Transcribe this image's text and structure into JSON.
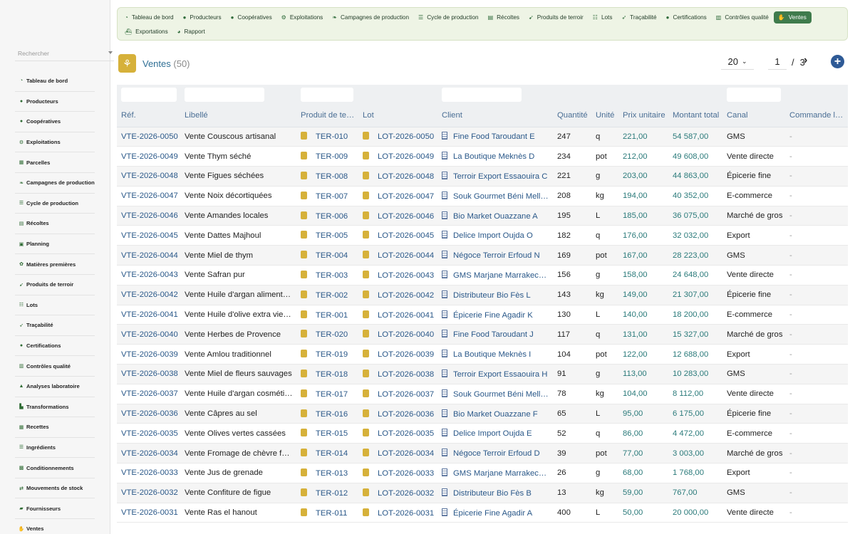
{
  "sidebar": {
    "search_placeholder": "Rechercher",
    "items": [
      {
        "label": "Tableau de bord",
        "icon": "dashboard-icon",
        "glyph": "◔"
      },
      {
        "label": "Producteurs",
        "icon": "user-icon",
        "glyph": "●"
      },
      {
        "label": "Coopératives",
        "icon": "users-icon",
        "glyph": "●"
      },
      {
        "label": "Exploitations",
        "icon": "tractor-icon",
        "glyph": "⚙"
      },
      {
        "label": "Parcelles",
        "icon": "map-icon",
        "glyph": "▦"
      },
      {
        "label": "Campagnes de production",
        "icon": "leaf-icon",
        "glyph": "❧"
      },
      {
        "label": "Cycle de production",
        "icon": "list-icon",
        "glyph": "☰"
      },
      {
        "label": "Récoltes",
        "icon": "basket-icon",
        "glyph": "▤"
      },
      {
        "label": "Planning",
        "icon": "calendar-icon",
        "glyph": "▣"
      },
      {
        "label": "Matières premières",
        "icon": "seedling-icon",
        "glyph": "✿"
      },
      {
        "label": "Produits de terroir",
        "icon": "carrot-icon",
        "glyph": "➹"
      },
      {
        "label": "Lots",
        "icon": "barcode-icon",
        "glyph": "☷"
      },
      {
        "label": "Traçabilité",
        "icon": "route-icon",
        "glyph": "➶"
      },
      {
        "label": "Certifications",
        "icon": "certificate-icon",
        "glyph": "●"
      },
      {
        "label": "Contrôles qualité",
        "icon": "clipboard-check-icon",
        "glyph": "▥"
      },
      {
        "label": "Analyses laboratoire",
        "icon": "flask-icon",
        "glyph": "▲"
      },
      {
        "label": "Transformations",
        "icon": "industry-icon",
        "glyph": "▙"
      },
      {
        "label": "Recettes",
        "icon": "recipe-icon",
        "glyph": "▦"
      },
      {
        "label": "Ingrédients",
        "icon": "ingredients-icon",
        "glyph": "☰"
      },
      {
        "label": "Conditionnements",
        "icon": "box-icon",
        "glyph": "▩"
      },
      {
        "label": "Mouvements de stock",
        "icon": "exchange-icon",
        "glyph": "⇄"
      },
      {
        "label": "Fournisseurs",
        "icon": "truck-icon",
        "glyph": "▰"
      },
      {
        "label": "Ventes",
        "icon": "handshake-icon",
        "glyph": "✋"
      }
    ]
  },
  "modules": {
    "row1": [
      {
        "label": "Tableau de bord",
        "icon": "dashboard-icon",
        "glyph": "◔",
        "active": false
      },
      {
        "label": "Producteurs",
        "icon": "user-icon",
        "glyph": "●",
        "active": false
      },
      {
        "label": "Coopératives",
        "icon": "users-icon",
        "glyph": "●",
        "active": false
      },
      {
        "label": "Exploitations",
        "icon": "tractor-icon",
        "glyph": "⚙",
        "active": false
      },
      {
        "label": "Campagnes de production",
        "icon": "leaf-icon",
        "glyph": "❧",
        "active": false
      },
      {
        "label": "Cycle de production",
        "icon": "list-icon",
        "glyph": "☰",
        "active": false
      },
      {
        "label": "Récoltes",
        "icon": "basket-icon",
        "glyph": "▤",
        "active": false
      },
      {
        "label": "Produits de terroir",
        "icon": "carrot-icon",
        "glyph": "➹",
        "active": false
      },
      {
        "label": "Lots",
        "icon": "barcode-icon",
        "glyph": "☷",
        "active": false
      },
      {
        "label": "Traçabilité",
        "icon": "route-icon",
        "glyph": "➶",
        "active": false
      },
      {
        "label": "Certifications",
        "icon": "certificate-icon",
        "glyph": "●",
        "active": false
      },
      {
        "label": "Contrôles qualité",
        "icon": "clipboard-check-icon",
        "glyph": "▥",
        "active": false
      },
      {
        "label": "Ventes",
        "icon": "handshake-icon",
        "glyph": "✋",
        "active": true
      }
    ],
    "row2": [
      {
        "label": "Exportations",
        "icon": "ship-icon",
        "glyph": "⛴",
        "active": false
      },
      {
        "label": "Rapport",
        "icon": "chart-icon",
        "glyph": "◕",
        "active": false
      }
    ]
  },
  "page": {
    "title": "Ventes",
    "count": "(50)"
  },
  "pager": {
    "page_size": "20",
    "current": "1",
    "separator": "/",
    "total": "3"
  },
  "table": {
    "columns": [
      "Réf.",
      "Libellé",
      "Produit de te…",
      "Lot",
      "Client",
      "Quantité",
      "Unité",
      "Prix unitaire",
      "Montant total",
      "Canal",
      "Commande l…"
    ],
    "rows": [
      [
        "VTE-2026-0050",
        "Vente Couscous artisanal",
        "TER-010",
        "LOT-2026-0050",
        "Fine Food Taroudant E",
        "247",
        "q",
        "221,00",
        "54 587,00",
        "GMS",
        "-"
      ],
      [
        "VTE-2026-0049",
        "Vente Thym séché",
        "TER-009",
        "LOT-2026-0049",
        "La Boutique Meknès D",
        "234",
        "pot",
        "212,00",
        "49 608,00",
        "Vente directe",
        "-"
      ],
      [
        "VTE-2026-0048",
        "Vente Figues séchées",
        "TER-008",
        "LOT-2026-0048",
        "Terroir Export Essaouira C",
        "221",
        "g",
        "203,00",
        "44 863,00",
        "Épicerie fine",
        "-"
      ],
      [
        "VTE-2026-0047",
        "Vente Noix décortiquées",
        "TER-007",
        "LOT-2026-0047",
        "Souk Gourmet Béni Mell…",
        "208",
        "kg",
        "194,00",
        "40 352,00",
        "E-commerce",
        "-"
      ],
      [
        "VTE-2026-0046",
        "Vente Amandes locales",
        "TER-006",
        "LOT-2026-0046",
        "Bio Market Ouazzane A",
        "195",
        "L",
        "185,00",
        "36 075,00",
        "Marché de gros",
        "-"
      ],
      [
        "VTE-2026-0045",
        "Vente Dattes Majhoul",
        "TER-005",
        "LOT-2026-0045",
        "Delice Import Oujda O",
        "182",
        "q",
        "176,00",
        "32 032,00",
        "Export",
        "-"
      ],
      [
        "VTE-2026-0044",
        "Vente Miel de thym",
        "TER-004",
        "LOT-2026-0044",
        "Négoce Terroir Erfoud N",
        "169",
        "pot",
        "167,00",
        "28 223,00",
        "GMS",
        "-"
      ],
      [
        "VTE-2026-0043",
        "Vente Safran pur",
        "TER-003",
        "LOT-2026-0043",
        "GMS Marjane Marrakec…",
        "156",
        "g",
        "158,00",
        "24 648,00",
        "Vente directe",
        "-"
      ],
      [
        "VTE-2026-0042",
        "Vente Huile d'argan aliment…",
        "TER-002",
        "LOT-2026-0042",
        "Distributeur Bio Fès L",
        "143",
        "kg",
        "149,00",
        "21 307,00",
        "Épicerie fine",
        "-"
      ],
      [
        "VTE-2026-0041",
        "Vente Huile d'olive extra vie…",
        "TER-001",
        "LOT-2026-0041",
        "Épicerie Fine Agadir K",
        "130",
        "L",
        "140,00",
        "18 200,00",
        "E-commerce",
        "-"
      ],
      [
        "VTE-2026-0040",
        "Vente Herbes de Provence",
        "TER-020",
        "LOT-2026-0040",
        "Fine Food Taroudant J",
        "117",
        "q",
        "131,00",
        "15 327,00",
        "Marché de gros",
        "-"
      ],
      [
        "VTE-2026-0039",
        "Vente Amlou traditionnel",
        "TER-019",
        "LOT-2026-0039",
        "La Boutique Meknès I",
        "104",
        "pot",
        "122,00",
        "12 688,00",
        "Export",
        "-"
      ],
      [
        "VTE-2026-0038",
        "Vente Miel de fleurs sauvages",
        "TER-018",
        "LOT-2026-0038",
        "Terroir Export Essaouira H",
        "91",
        "g",
        "113,00",
        "10 283,00",
        "GMS",
        "-"
      ],
      [
        "VTE-2026-0037",
        "Vente Huile d'argan cosméti…",
        "TER-017",
        "LOT-2026-0037",
        "Souk Gourmet Béni Mell…",
        "78",
        "kg",
        "104,00",
        "8 112,00",
        "Vente directe",
        "-"
      ],
      [
        "VTE-2026-0036",
        "Vente Câpres au sel",
        "TER-016",
        "LOT-2026-0036",
        "Bio Market Ouazzane F",
        "65",
        "L",
        "95,00",
        "6 175,00",
        "Épicerie fine",
        "-"
      ],
      [
        "VTE-2026-0035",
        "Vente Olives vertes cassées",
        "TER-015",
        "LOT-2026-0035",
        "Delice Import Oujda E",
        "52",
        "q",
        "86,00",
        "4 472,00",
        "E-commerce",
        "-"
      ],
      [
        "VTE-2026-0034",
        "Vente Fromage de chèvre f…",
        "TER-014",
        "LOT-2026-0034",
        "Négoce Terroir Erfoud D",
        "39",
        "pot",
        "77,00",
        "3 003,00",
        "Marché de gros",
        "-"
      ],
      [
        "VTE-2026-0033",
        "Vente Jus de grenade",
        "TER-013",
        "LOT-2026-0033",
        "GMS Marjane Marrakec…",
        "26",
        "g",
        "68,00",
        "1 768,00",
        "Export",
        "-"
      ],
      [
        "VTE-2026-0032",
        "Vente Confiture de figue",
        "TER-012",
        "LOT-2026-0032",
        "Distributeur Bio Fès B",
        "13",
        "kg",
        "59,00",
        "767,00",
        "GMS",
        "-"
      ],
      [
        "VTE-2026-0031",
        "Vente Ras el hanout",
        "TER-011",
        "LOT-2026-0031",
        "Épicerie Fine Agadir A",
        "400",
        "L",
        "50,00",
        "20 000,00",
        "Vente directe",
        "-"
      ]
    ]
  },
  "colors": {
    "accent": "#3f7b4c",
    "link": "#2a5889",
    "money": "#2a7a7a",
    "header_text": "#4a6e94",
    "add_button": "#2e5a96",
    "product_icon": "#d6b13a"
  }
}
